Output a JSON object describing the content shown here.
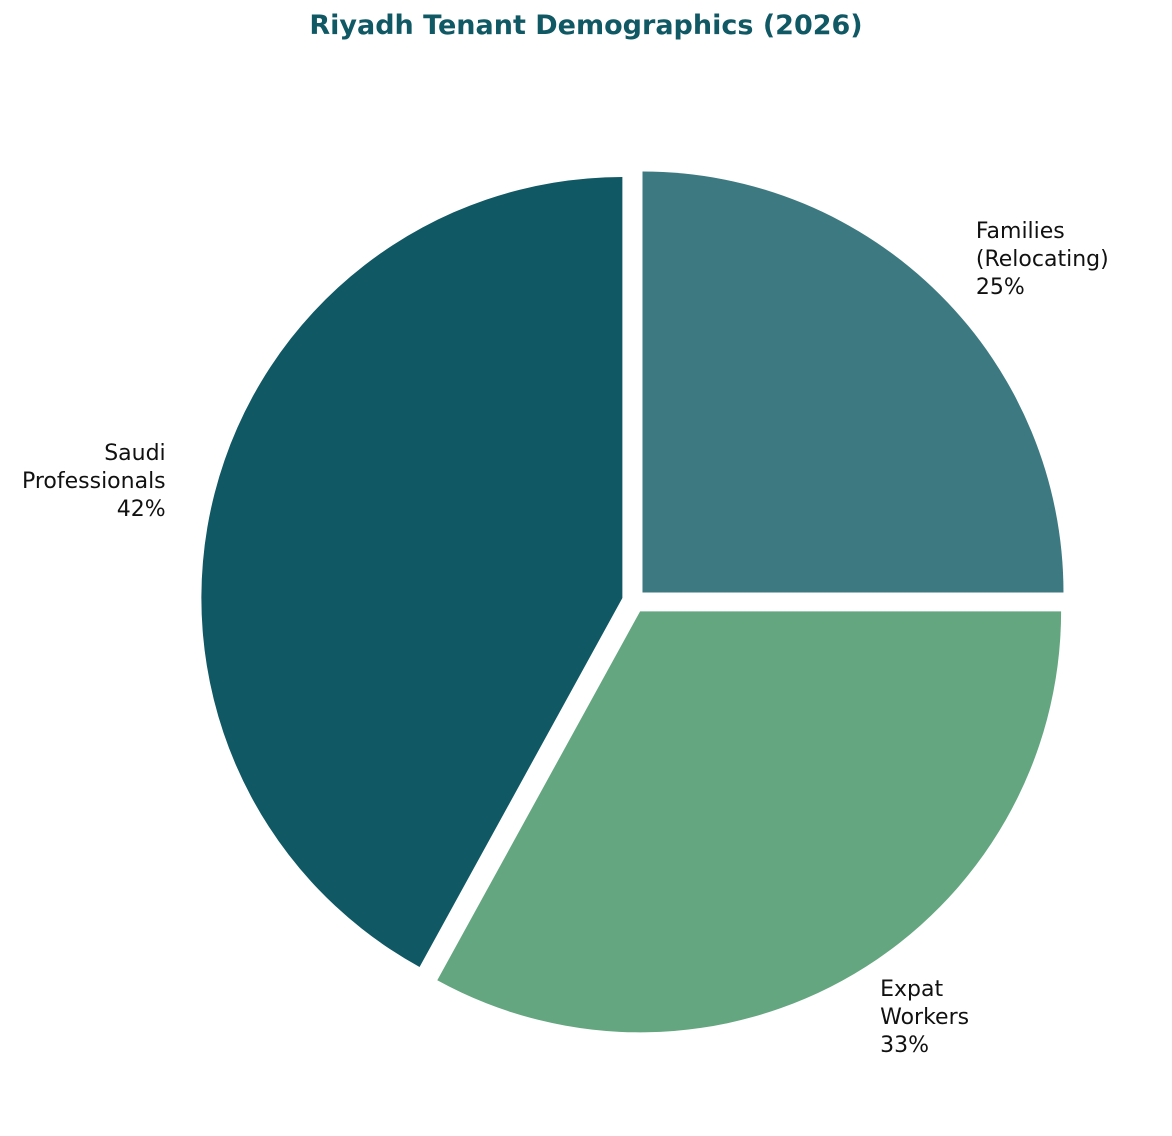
{
  "chart_data": {
    "type": "pie",
    "title": "Riyadh Tenant Demographics (2026)",
    "slices": [
      {
        "label_lines": [
          "Families",
          "(Relocating)"
        ],
        "percent_label": "25%",
        "value": 25,
        "color": "#3d7981"
      },
      {
        "label_lines": [
          "Expat",
          "Workers"
        ],
        "percent_label": "33%",
        "value": 33,
        "color": "#63a67f"
      },
      {
        "label_lines": [
          "Saudi",
          "Professionals"
        ],
        "percent_label": "42%",
        "value": 42,
        "color": "#0f5864"
      }
    ],
    "direction": "clockwise",
    "start": "12 o'clock",
    "exploded": true,
    "legend": "none"
  },
  "colors": {
    "title": "#0f5864",
    "label": "#111111",
    "background": "#ffffff"
  }
}
